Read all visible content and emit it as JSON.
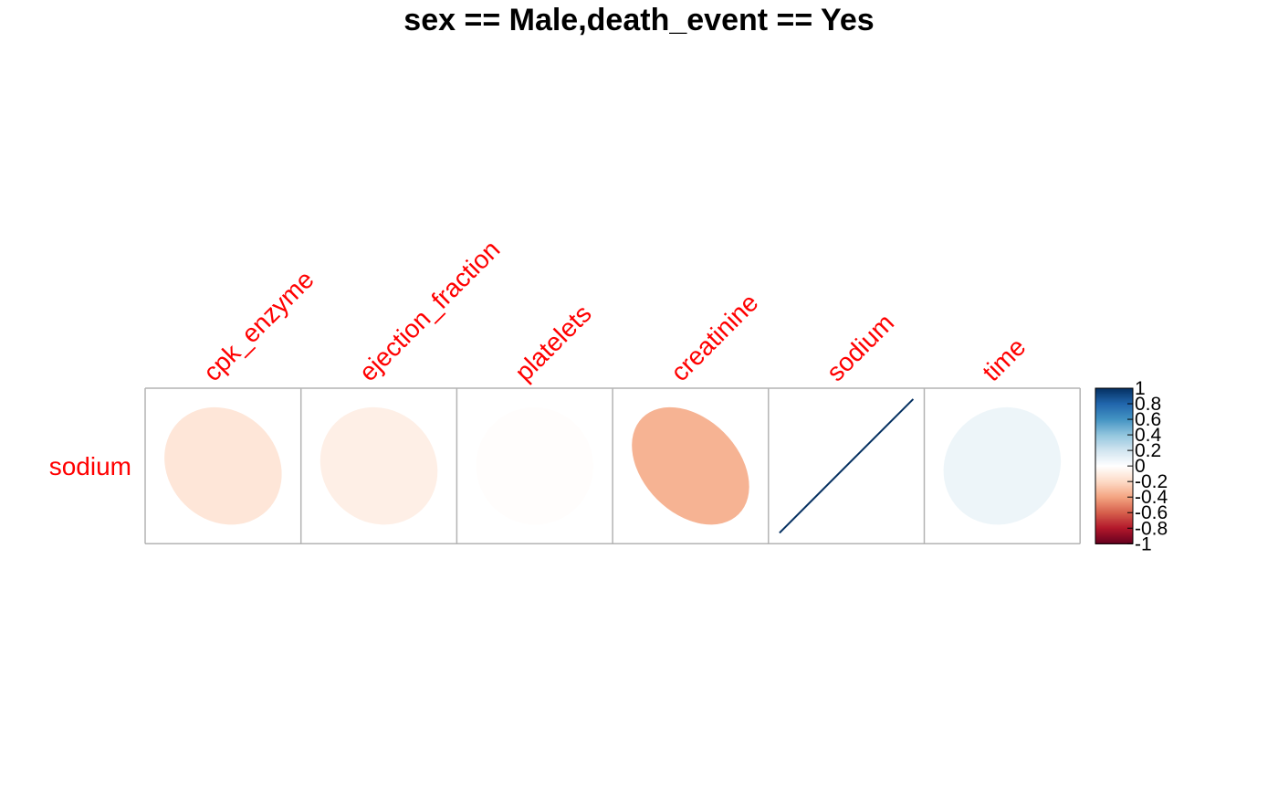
{
  "chart_data": {
    "type": "heatmap",
    "subtype": "correlation-ellipse",
    "title": "sex == Male,death_event == Yes",
    "rows": [
      "sodium"
    ],
    "columns": [
      "cpk_enzyme",
      "ejection_fraction",
      "platelets",
      "creatinine",
      "sodium",
      "time"
    ],
    "values": [
      [
        -0.14,
        -0.09,
        -0.01,
        -0.35,
        1.0,
        0.08
      ]
    ],
    "label_color": "#FF0000",
    "grid_color": "#B3B3B3",
    "colorbar": {
      "range": [
        -1,
        1
      ],
      "ticks": [
        "-1",
        "-0.8",
        "-0.6",
        "-0.4",
        "-0.2",
        "0",
        "0.2",
        "0.4",
        "0.6",
        "0.8",
        "1"
      ],
      "tick_values": [
        -1,
        -0.8,
        -0.6,
        -0.4,
        -0.2,
        0,
        0.2,
        0.4,
        0.6,
        0.8,
        1
      ],
      "palette": [
        "#67001F",
        "#B2182B",
        "#D6604D",
        "#F4A582",
        "#FDDBC7",
        "#FFFFFF",
        "#D1E5F0",
        "#92C5DE",
        "#4393C3",
        "#2166AC",
        "#053061"
      ]
    }
  }
}
